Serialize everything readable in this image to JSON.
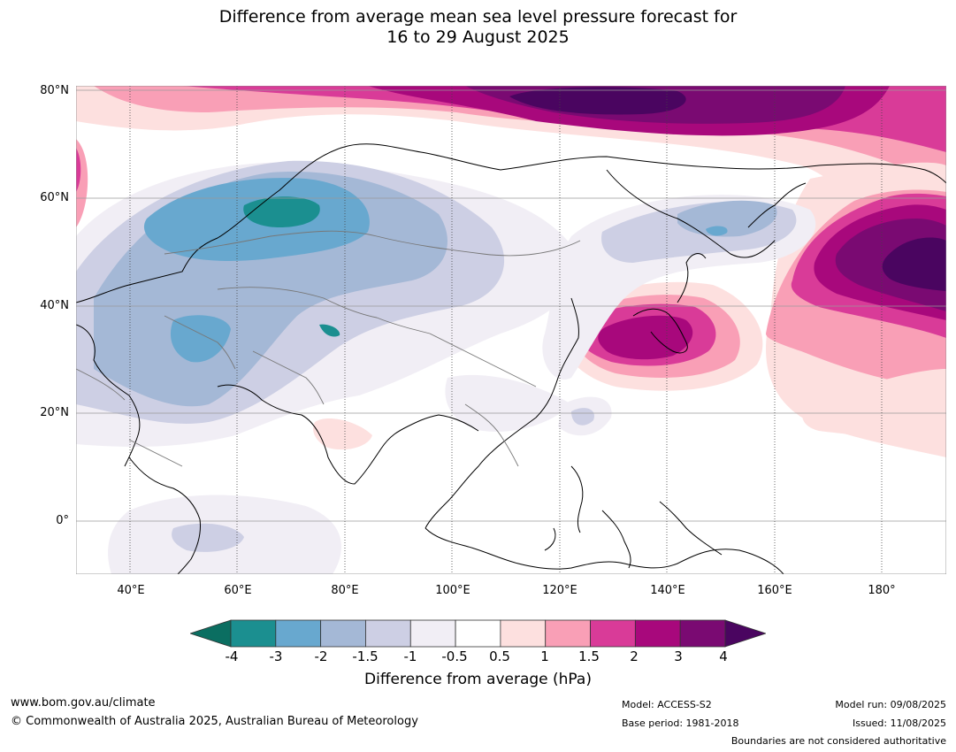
{
  "title": {
    "line1": "Difference from average mean sea level pressure forecast for",
    "line2": "16 to 29 August 2025"
  },
  "map": {
    "lat_labels": [
      "80°N",
      "60°N",
      "40°N",
      "20°N",
      "0°"
    ],
    "lon_labels": [
      "40°E",
      "60°E",
      "80°E",
      "100°E",
      "120°E",
      "140°E",
      "160°E",
      "180°"
    ],
    "extent": {
      "lon_min": 30,
      "lon_max": 192,
      "lat_min": -10,
      "lat_max": 80
    }
  },
  "colorbar": {
    "ticks": [
      "-4",
      "-3",
      "-2",
      "-1.5",
      "-1",
      "-0.5",
      "0.5",
      "1",
      "1.5",
      "2",
      "3",
      "4"
    ],
    "colors": [
      "#1b8f90",
      "#68a8cf",
      "#a4b8d6",
      "#cdcfe4",
      "#f1eef5",
      "#ffffff",
      "#fde0df",
      "#f99fb6",
      "#d93b98",
      "#a8087c",
      "#7a0a72"
    ],
    "under_color": "#0b6e61",
    "over_color": "#4a0560",
    "label": "Difference from average (hPa)"
  },
  "footer": {
    "website": "www.bom.gov.au/climate",
    "copyright": "© Commonwealth of Australia 2025, Australian Bureau of Meteorology",
    "model": "Model: ACCESS-S2",
    "base_period": "Base period: 1981-2018",
    "model_run": "Model run: 09/08/2025",
    "issued": "Issued: 11/08/2025",
    "disclaimer": "Boundaries are not considered authoritative"
  }
}
